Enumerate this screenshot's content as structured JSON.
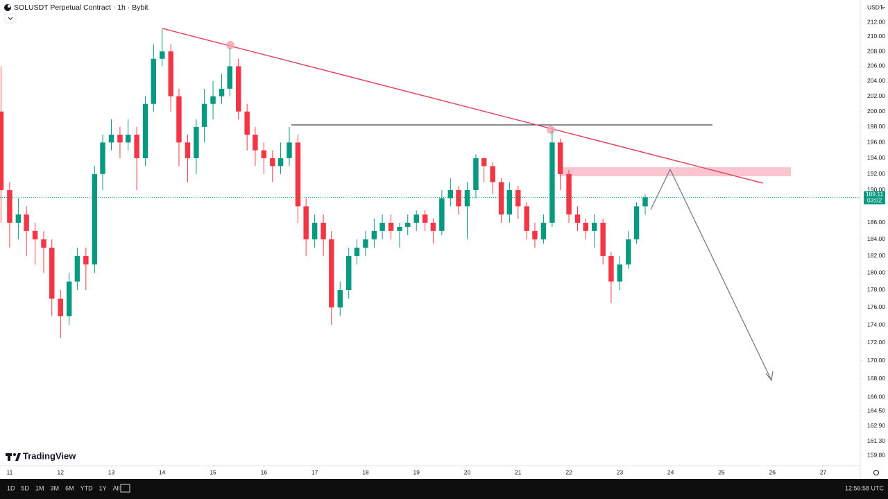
{
  "chart_data": {
    "type": "candlestick",
    "title": "SOLUSDT Perpetual Contract · 1h · Bybit",
    "currency": "USDT",
    "watermark": "TradingView",
    "ranges": [
      "1D",
      "5D",
      "1M",
      "3M",
      "6M",
      "YTD",
      "1Y",
      "All"
    ],
    "clock": "12:56:58 UTC",
    "up_color": "#089981",
    "down_color": "#f23645",
    "log_scale": true,
    "grid": false,
    "last_price": 189.11,
    "last_price_label": "189.11",
    "countdown": "03:02",
    "xlim": [
      10.81,
      27.73
    ],
    "xticks": [
      11,
      12,
      13,
      14,
      15,
      16,
      17,
      18,
      19,
      20,
      21,
      22,
      23,
      24,
      25,
      26,
      27
    ],
    "ylim": [
      158.8,
      215.1
    ],
    "yticks": [
      {
        "value": 212,
        "label": "212.00"
      },
      {
        "value": 210,
        "label": "210.00"
      },
      {
        "value": 208,
        "label": "208.00"
      },
      {
        "value": 206,
        "label": "206.00"
      },
      {
        "value": 204,
        "label": "204.00"
      },
      {
        "value": 202,
        "label": "202.00"
      },
      {
        "value": 200,
        "label": "200.00"
      },
      {
        "value": 198,
        "label": "198.00"
      },
      {
        "value": 196,
        "label": "196.00"
      },
      {
        "value": 194,
        "label": "194.00"
      },
      {
        "value": 192,
        "label": "192.00"
      },
      {
        "value": 190,
        "label": "190.00"
      },
      {
        "value": 186,
        "label": "186.00"
      },
      {
        "value": 184,
        "label": "184.00"
      },
      {
        "value": 182,
        "label": "182.00"
      },
      {
        "value": 180,
        "label": "180.00"
      },
      {
        "value": 178,
        "label": "178.00"
      },
      {
        "value": 176,
        "label": "176.00"
      },
      {
        "value": 174,
        "label": "174.00"
      },
      {
        "value": 172,
        "label": "172.00"
      },
      {
        "value": 170,
        "label": "170.00"
      },
      {
        "value": 168,
        "label": "168.00"
      },
      {
        "value": 166,
        "label": "166.00"
      },
      {
        "value": 164.5,
        "label": "164.50"
      },
      {
        "value": 162.9,
        "label": "162.90"
      },
      {
        "value": 161.3,
        "label": "161.30"
      },
      {
        "value": 159.8,
        "label": "159.80"
      }
    ],
    "x": [
      10.83,
      11,
      11.17,
      11.33,
      11.5,
      11.67,
      11.83,
      12,
      12.17,
      12.33,
      12.5,
      12.67,
      12.83,
      13,
      13.17,
      13.33,
      13.5,
      13.67,
      13.83,
      14,
      14.17,
      14.33,
      14.5,
      14.67,
      14.83,
      15,
      15.17,
      15.33,
      15.5,
      15.67,
      15.83,
      16,
      16.17,
      16.33,
      16.5,
      16.67,
      16.83,
      17,
      17.17,
      17.33,
      17.5,
      17.67,
      17.83,
      18,
      18.17,
      18.33,
      18.5,
      18.67,
      18.83,
      19,
      19.17,
      19.33,
      19.5,
      19.67,
      19.83,
      20,
      20.17,
      20.33,
      20.5,
      20.67,
      20.83,
      21,
      21.17,
      21.33,
      21.5,
      21.67,
      21.83,
      22,
      22.17,
      22.33,
      22.5,
      22.67,
      22.83,
      23,
      23.17,
      23.33,
      23.5
    ],
    "open": [
      200,
      190,
      186,
      187,
      185,
      184,
      183,
      177,
      175,
      179,
      182,
      181,
      192,
      196,
      197,
      196,
      197,
      194,
      201,
      207,
      208,
      202,
      196,
      194,
      198,
      201,
      202,
      203,
      206,
      200,
      197,
      195,
      194,
      193,
      194,
      196,
      188,
      184,
      186,
      184,
      176,
      178,
      182,
      183,
      184,
      185,
      186,
      185,
      185.5,
      186,
      187,
      186,
      185,
      189,
      190,
      188,
      190,
      194,
      193,
      191,
      187,
      190,
      188,
      185,
      184,
      186,
      196,
      192,
      187,
      186,
      185,
      186,
      182,
      179,
      181,
      184,
      188
    ],
    "high": [
      206,
      191,
      189,
      188,
      186,
      185,
      184,
      178,
      180,
      183,
      183,
      193,
      197,
      199,
      198,
      199,
      198,
      202,
      209,
      211,
      209,
      203,
      197,
      199,
      203,
      204,
      205,
      208.5,
      207,
      201,
      198,
      196,
      195,
      196,
      198,
      197,
      189,
      187,
      187,
      185,
      179,
      183,
      184,
      185,
      186.5,
      187,
      187,
      186,
      187,
      187.5,
      187.5,
      186.5,
      190,
      191.5,
      190.5,
      191,
      194.5,
      194,
      193.5,
      191.5,
      191,
      190.5,
      188.5,
      186,
      187,
      197.5,
      196.5,
      192.5,
      188,
      186.5,
      187,
      186.5,
      182.5,
      182,
      185,
      188.5,
      189.5
    ],
    "low": [
      186,
      183,
      184,
      182,
      181,
      180,
      175,
      172.5,
      174,
      178,
      178,
      180,
      190,
      195,
      194,
      195,
      190,
      193,
      200,
      206,
      200,
      193,
      191,
      192,
      196,
      199,
      201,
      202,
      199,
      195,
      193,
      192,
      191,
      192,
      193,
      186,
      182,
      183,
      182,
      174,
      175,
      177,
      181,
      182,
      183,
      184,
      184,
      183,
      184.5,
      185,
      185,
      183.5,
      184.5,
      188,
      187,
      184,
      189,
      191,
      189.5,
      186,
      186,
      186.5,
      184,
      183,
      183.5,
      185.5,
      190,
      186,
      185,
      184,
      183,
      181,
      176.5,
      178,
      180.5,
      183.5,
      187
    ],
    "close": [
      190,
      186,
      187,
      185,
      184,
      183,
      177,
      175,
      179,
      182,
      181,
      192,
      196,
      197,
      196,
      197,
      194,
      201,
      207,
      208,
      202,
      196,
      194,
      198,
      201,
      202,
      203,
      206,
      200,
      197,
      195,
      194,
      193,
      194,
      196,
      188,
      184,
      186,
      184,
      176,
      178,
      182,
      183,
      184,
      185,
      186,
      185,
      185.5,
      186,
      187,
      186,
      185,
      189,
      190,
      188,
      190,
      194,
      193,
      191,
      187,
      190,
      188,
      185,
      184,
      186,
      196,
      192,
      187,
      186,
      185,
      186,
      182,
      179,
      181,
      184,
      188,
      189.11
    ]
  }
}
